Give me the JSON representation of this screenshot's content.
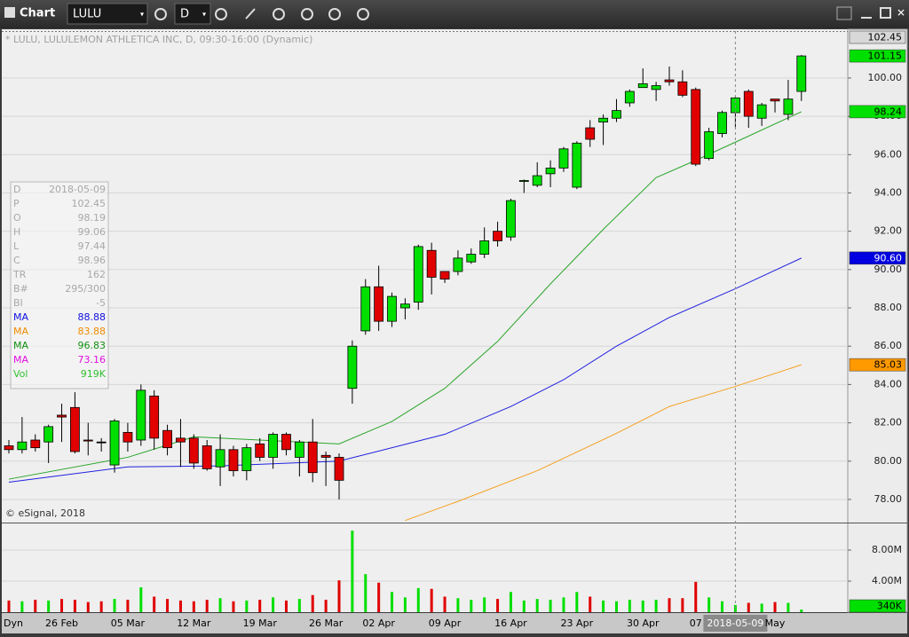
{
  "toolbar": {
    "title": "Chart",
    "symbol": "LULU",
    "interval": "D"
  },
  "chart_data": {
    "type": "candlestick",
    "title": "* LULU, LULULEMON ATHLETICA INC, D, 09:30-16:00 (Dynamic)",
    "credit": "© eSignal, 2018",
    "footer_label": "Dyn",
    "categories": [
      null,
      null,
      null,
      null,
      "26 Feb",
      null,
      null,
      null,
      null,
      "05 Mar",
      null,
      null,
      null,
      null,
      "12 Mar",
      null,
      null,
      null,
      null,
      "19 Mar",
      null,
      null,
      null,
      null,
      "26 Mar",
      null,
      null,
      null,
      "02 Apr",
      null,
      null,
      null,
      null,
      "09 Apr",
      null,
      null,
      null,
      null,
      "16 Apr",
      null,
      null,
      null,
      null,
      "23 Apr",
      null,
      null,
      null,
      null,
      "30 Apr",
      null,
      null,
      null,
      "07",
      null,
      null,
      "2018-05-09",
      null,
      null,
      "May",
      null,
      null
    ],
    "crosshair": "2018-05-09",
    "open": [
      80.8,
      80.6,
      81.1,
      81.0,
      82.4,
      82.8,
      81.1,
      81.0,
      79.8,
      81.5,
      81.1,
      83.4,
      81.6,
      81.2,
      81.2,
      80.8,
      79.7,
      80.6,
      79.5,
      80.9,
      80.2,
      81.4,
      80.2,
      81.0,
      80.3,
      80.2,
      83.8,
      86.8,
      89.1,
      87.3,
      88.0,
      88.3,
      91.0,
      89.9,
      89.9,
      90.4,
      90.8,
      92.0,
      91.7,
      94.6,
      94.4,
      95.0,
      95.3,
      94.3,
      97.4,
      97.7,
      97.9,
      98.7,
      99.5,
      99.4,
      99.9,
      99.8,
      99.4,
      95.8,
      97.1,
      98.19,
      99.3,
      97.9,
      98.9,
      98.1,
      99.3
    ],
    "high": [
      81.1,
      82.3,
      81.4,
      81.9,
      83.0,
      83.6,
      82.0,
      81.2,
      82.2,
      82.0,
      84.0,
      83.7,
      81.9,
      82.2,
      81.4,
      81.1,
      81.4,
      80.8,
      80.9,
      81.2,
      81.5,
      81.5,
      81.1,
      82.2,
      80.5,
      80.4,
      86.3,
      89.5,
      90.2,
      88.8,
      88.5,
      91.3,
      91.4,
      89.9,
      91.0,
      91.1,
      92.2,
      92.5,
      93.7,
      94.7,
      95.6,
      95.7,
      96.4,
      96.7,
      97.8,
      98.1,
      98.9,
      99.4,
      100.5,
      99.8,
      100.6,
      100.4,
      99.5,
      97.4,
      98.3,
      99.06,
      99.4,
      98.7,
      98.9,
      99.9,
      101.2
    ],
    "low": [
      80.4,
      80.4,
      80.5,
      79.9,
      81.0,
      80.4,
      80.3,
      80.5,
      79.4,
      80.5,
      80.8,
      80.6,
      80.3,
      79.7,
      79.6,
      79.5,
      78.7,
      79.2,
      79.0,
      80.0,
      79.6,
      80.3,
      79.2,
      78.9,
      78.7,
      78.0,
      83.0,
      86.6,
      86.8,
      87.0,
      87.4,
      87.9,
      88.7,
      89.3,
      89.7,
      90.3,
      90.6,
      91.2,
      91.5,
      94.0,
      94.3,
      94.3,
      95.1,
      94.2,
      96.4,
      96.5,
      97.7,
      98.5,
      99.5,
      98.8,
      99.6,
      99.0,
      95.4,
      95.7,
      96.9,
      97.44,
      97.4,
      97.5,
      98.2,
      97.8,
      98.8
    ],
    "close": [
      80.6,
      81.0,
      80.7,
      81.8,
      82.3,
      80.5,
      81.05,
      81.0,
      82.1,
      81.0,
      83.7,
      81.2,
      80.7,
      81.0,
      79.9,
      79.6,
      80.6,
      79.5,
      80.7,
      80.2,
      81.4,
      80.6,
      81.0,
      79.4,
      80.2,
      79.0,
      86.0,
      89.1,
      87.3,
      88.6,
      88.2,
      91.2,
      89.6,
      89.5,
      90.6,
      90.8,
      91.5,
      91.5,
      93.6,
      94.65,
      94.9,
      95.3,
      96.3,
      96.6,
      96.8,
      97.9,
      98.3,
      99.3,
      99.7,
      99.6,
      99.8,
      99.1,
      95.5,
      97.2,
      98.2,
      98.96,
      98.0,
      98.6,
      98.8,
      98.9,
      101.15
    ],
    "up_color": "#00e000",
    "down_color": "#e00000",
    "doji_color": "#000000",
    "ylim": [
      76.84,
      102.45
    ],
    "yticks": [
      {
        "value": 78,
        "label": "78.00"
      },
      {
        "value": 80,
        "label": "80.00"
      },
      {
        "value": 82,
        "label": "82.00"
      },
      {
        "value": 84,
        "label": "84.00"
      },
      {
        "value": 86,
        "label": "86.00"
      },
      {
        "value": 88,
        "label": "88.00"
      },
      {
        "value": 90,
        "label": "90.00"
      },
      {
        "value": 92,
        "label": "92.00"
      },
      {
        "value": 94,
        "label": "94.00"
      },
      {
        "value": 96,
        "label": "96.00"
      },
      {
        "value": 98,
        "label": "98.00"
      },
      {
        "value": 100,
        "label": "100.00"
      }
    ],
    "grid": true,
    "moving_averages": [
      {
        "color": "#2aa52a",
        "x": [
          0,
          9,
          14,
          25,
          29,
          33,
          37,
          41,
          45,
          49,
          52,
          55,
          60
        ],
        "values": [
          79.06,
          80.2,
          81.27,
          80.9,
          82.07,
          83.8,
          86.25,
          89.25,
          92.1,
          94.8,
          95.7,
          96.65,
          98.24
        ]
      },
      {
        "color": "#2020e0",
        "x": [
          0,
          9,
          16,
          25,
          33,
          38,
          42,
          46,
          50,
          55,
          60
        ],
        "values": [
          78.9,
          79.7,
          79.75,
          80.0,
          81.4,
          82.85,
          84.25,
          86.0,
          87.5,
          89.0,
          90.6
        ]
      },
      {
        "color": "#f5a020",
        "x": [
          30,
          34,
          40,
          46,
          50,
          55,
          60
        ],
        "values": [
          76.9,
          77.9,
          79.5,
          81.45,
          82.85,
          83.9,
          85.03
        ]
      }
    ],
    "price_markers": [
      {
        "value": 102.45,
        "label": "102.45",
        "color": "#d8d8d8",
        "text_color": "#000000"
      },
      {
        "value": 101.15,
        "label": "101.15",
        "color": "#00e000",
        "text_color": "#000000"
      },
      {
        "value": 98.24,
        "label": "98.24",
        "color": "#00e000",
        "text_color": "#000000"
      },
      {
        "value": 90.6,
        "label": "90.60",
        "color": "#0000e0",
        "text_color": "#ffffff"
      },
      {
        "value": 85.03,
        "label": "85.03",
        "color": "#ff9900",
        "text_color": "#000000"
      }
    ],
    "volume": {
      "values": [
        1.5,
        1.4,
        1.6,
        1.5,
        1.7,
        1.6,
        1.3,
        1.4,
        1.7,
        1.6,
        3.2,
        2.0,
        1.7,
        1.5,
        1.4,
        1.6,
        1.8,
        1.4,
        1.5,
        1.6,
        1.9,
        1.5,
        1.7,
        2.2,
        1.6,
        4.1,
        10.5,
        4.9,
        3.8,
        2.6,
        1.9,
        3.1,
        3.0,
        2.0,
        1.8,
        1.6,
        1.9,
        1.7,
        2.6,
        1.5,
        1.7,
        1.6,
        1.9,
        2.6,
        2.0,
        1.5,
        1.4,
        1.6,
        1.5,
        1.6,
        1.8,
        1.8,
        3.9,
        1.9,
        1.4,
        0.919,
        1.2,
        1.1,
        1.3,
        1.2,
        0.34
      ],
      "ylim": [
        0,
        11.2
      ],
      "yticks": [
        {
          "value": 4,
          "label": "4.00M"
        },
        {
          "value": 8,
          "label": "8.00M"
        }
      ],
      "markers": [
        {
          "value": 0.34,
          "label": "340K",
          "color": "#00e000",
          "text_color": "#000000"
        }
      ]
    },
    "data_window": [
      {
        "label": "D",
        "value": "2018-05-09",
        "color": "#a8a8a8"
      },
      {
        "label": "P",
        "value": "102.45",
        "color": "#a8a8a8"
      },
      {
        "label": "O",
        "value": "98.19",
        "color": "#a8a8a8"
      },
      {
        "label": "H",
        "value": "99.06",
        "color": "#a8a8a8"
      },
      {
        "label": "L",
        "value": "97.44",
        "color": "#a8a8a8"
      },
      {
        "label": "C",
        "value": "98.96",
        "color": "#a8a8a8"
      },
      {
        "label": "TR",
        "value": "162",
        "color": "#a8a8a8"
      },
      {
        "label": "B#",
        "value": "295/300",
        "color": "#a8a8a8"
      },
      {
        "label": "BI",
        "value": "-5",
        "color": "#a8a8a8"
      },
      {
        "label": "MA",
        "value": "88.88",
        "color": "#1010e0"
      },
      {
        "label": "MA",
        "value": "83.88",
        "color": "#f08c00"
      },
      {
        "label": "MA",
        "value": "96.83",
        "color": "#109010"
      },
      {
        "label": "MA",
        "value": "73.16",
        "color": "#e010e0"
      },
      {
        "label": "Vol",
        "value": "919K",
        "color": "#30c030"
      }
    ]
  }
}
